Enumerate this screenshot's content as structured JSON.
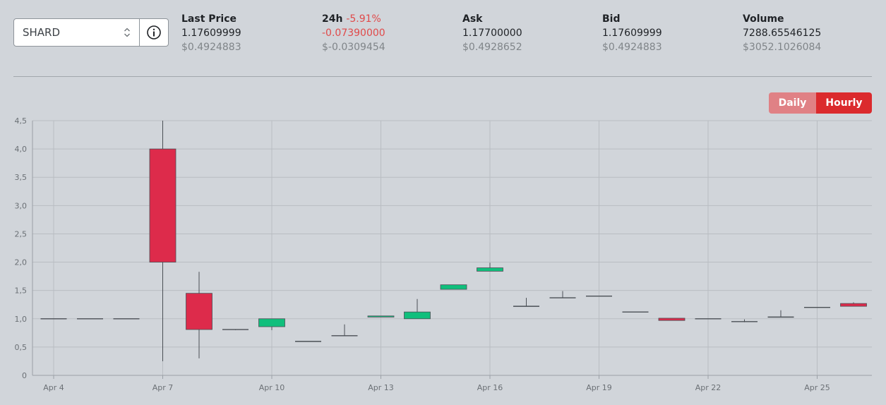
{
  "selector": {
    "value": "SHARD",
    "icon": "info-icon"
  },
  "stats": {
    "last_price": {
      "label": "Last Price",
      "value": "1.17609999",
      "usd": "$0.4924883"
    },
    "change_24h": {
      "label": "24h",
      "percent": "-5.91%",
      "value": "-0.07390000",
      "usd": "$-0.0309454"
    },
    "ask": {
      "label": "Ask",
      "value": "1.17700000",
      "usd": "$0.4928652"
    },
    "bid": {
      "label": "Bid",
      "value": "1.17609999",
      "usd": "$0.4924883"
    },
    "volume": {
      "label": "Volume",
      "value": "7288.65546125",
      "usd": "$3052.1026084"
    }
  },
  "toggle": {
    "daily": "Daily",
    "hourly": "Hourly",
    "active": "hourly"
  },
  "colors": {
    "up": "#10bf7c",
    "down": "#dd2b4b",
    "negative_text": "#e04a4a",
    "active_toggle": "#db2a2d"
  },
  "chart_data": {
    "type": "candlestick",
    "ylim": [
      0,
      4.5
    ],
    "yticks": [
      "0",
      "0,5",
      "1,0",
      "1,5",
      "2,0",
      "2,5",
      "3,0",
      "3,5",
      "4,0",
      "4,5"
    ],
    "xticks": [
      "Apr 4",
      "Apr 7",
      "Apr 10",
      "Apr 13",
      "Apr 16",
      "Apr 19",
      "Apr 22",
      "Apr 25"
    ],
    "grid": true,
    "candles": [
      {
        "date": "Apr 4",
        "open": 1.0,
        "high": 1.0,
        "low": 1.0,
        "close": 1.0
      },
      {
        "date": "Apr 5",
        "open": 1.0,
        "high": 1.0,
        "low": 1.0,
        "close": 1.0
      },
      {
        "date": "Apr 6",
        "open": 1.0,
        "high": 1.0,
        "low": 1.0,
        "close": 1.0
      },
      {
        "date": "Apr 7",
        "open": 4.0,
        "high": 4.5,
        "low": 0.25,
        "close": 2.0
      },
      {
        "date": "Apr 8",
        "open": 1.45,
        "high": 1.83,
        "low": 0.3,
        "close": 0.81
      },
      {
        "date": "Apr 9",
        "open": 0.81,
        "high": 0.81,
        "low": 0.8,
        "close": 0.8
      },
      {
        "date": "Apr 10",
        "open": 0.86,
        "high": 1.0,
        "low": 0.8,
        "close": 1.0
      },
      {
        "date": "Apr 11",
        "open": 0.6,
        "high": 0.6,
        "low": 0.6,
        "close": 0.6
      },
      {
        "date": "Apr 12",
        "open": 0.7,
        "high": 0.9,
        "low": 0.7,
        "close": 0.7
      },
      {
        "date": "Apr 13",
        "open": 1.03,
        "high": 1.05,
        "low": 1.03,
        "close": 1.05
      },
      {
        "date": "Apr 14",
        "open": 1.0,
        "high": 1.35,
        "low": 1.0,
        "close": 1.12
      },
      {
        "date": "Apr 15",
        "open": 1.52,
        "high": 1.6,
        "low": 1.52,
        "close": 1.6
      },
      {
        "date": "Apr 16",
        "open": 1.84,
        "high": 1.99,
        "low": 1.84,
        "close": 1.9
      },
      {
        "date": "Apr 17",
        "open": 1.22,
        "high": 1.37,
        "low": 1.22,
        "close": 1.22
      },
      {
        "date": "Apr 18",
        "open": 1.37,
        "high": 1.49,
        "low": 1.37,
        "close": 1.37
      },
      {
        "date": "Apr 19",
        "open": 1.4,
        "high": 1.4,
        "low": 1.4,
        "close": 1.4
      },
      {
        "date": "Apr 20",
        "open": 1.12,
        "high": 1.12,
        "low": 1.12,
        "close": 1.12
      },
      {
        "date": "Apr 21",
        "open": 1.01,
        "high": 1.01,
        "low": 0.97,
        "close": 0.97
      },
      {
        "date": "Apr 22",
        "open": 1.0,
        "high": 1.0,
        "low": 1.0,
        "close": 1.0
      },
      {
        "date": "Apr 23",
        "open": 0.95,
        "high": 0.99,
        "low": 0.94,
        "close": 0.95
      },
      {
        "date": "Apr 24",
        "open": 1.03,
        "high": 1.15,
        "low": 1.03,
        "close": 1.03
      },
      {
        "date": "Apr 25",
        "open": 1.2,
        "high": 1.2,
        "low": 1.2,
        "close": 1.2
      },
      {
        "date": "Apr 26",
        "open": 1.27,
        "high": 1.29,
        "low": 1.22,
        "close": 1.22
      }
    ]
  }
}
